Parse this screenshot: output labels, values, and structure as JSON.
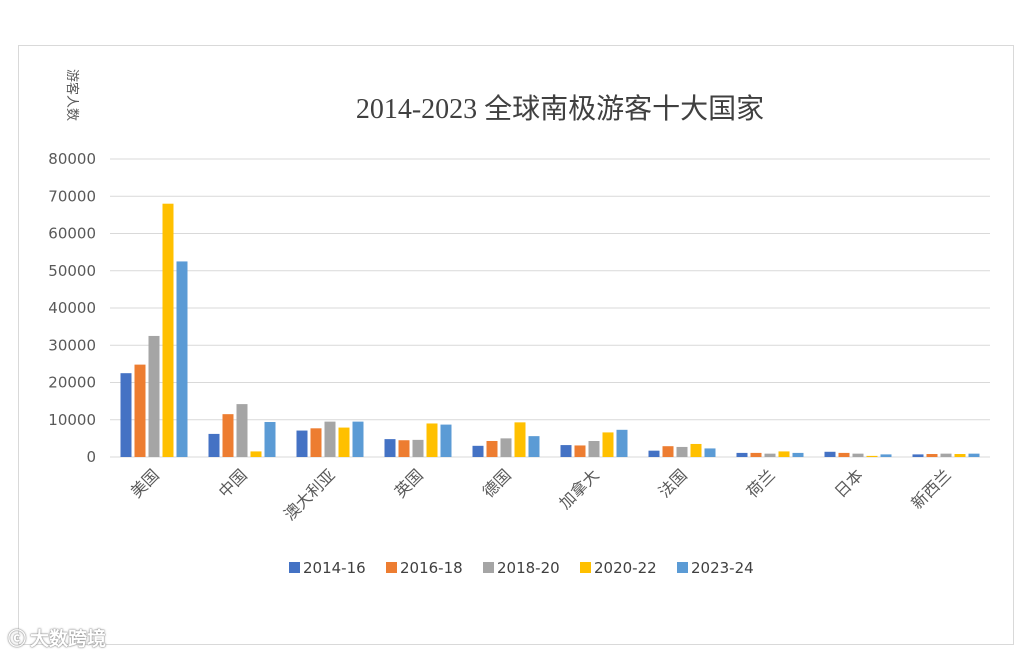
{
  "watermark": "大数跨境",
  "chart_data": {
    "type": "bar",
    "title": "2014-2023 全球南极游客十大国家",
    "ylabel": "游客人数",
    "xlabel": "",
    "ylim": [
      0,
      80000
    ],
    "yticks": [
      0,
      10000,
      20000,
      30000,
      40000,
      50000,
      60000,
      70000,
      80000
    ],
    "grid": true,
    "legend_position": "bottom",
    "categories": [
      "美国",
      "中国",
      "澳大利亚",
      "英国",
      "德国",
      "加拿大",
      "法国",
      "荷兰",
      "日本",
      "新西兰"
    ],
    "series": [
      {
        "name": "2014-16",
        "color": "#4472C4",
        "values": [
          22500,
          6200,
          7100,
          4800,
          3000,
          3200,
          1700,
          1100,
          1400,
          700
        ]
      },
      {
        "name": "2016-18",
        "color": "#ED7D31",
        "values": [
          24800,
          11500,
          7700,
          4500,
          4300,
          3100,
          2900,
          1100,
          1100,
          800
        ]
      },
      {
        "name": "2018-20",
        "color": "#A5A5A5",
        "values": [
          32500,
          14200,
          9500,
          4600,
          5000,
          4300,
          2700,
          900,
          900,
          900
        ]
      },
      {
        "name": "2020-22",
        "color": "#FFC000",
        "values": [
          68000,
          1500,
          7900,
          9000,
          9300,
          6600,
          3500,
          1500,
          300,
          800
        ]
      },
      {
        "name": "2023-24",
        "color": "#5B9BD5",
        "values": [
          52500,
          9400,
          9500,
          8700,
          5600,
          7300,
          2300,
          1100,
          700,
          900
        ]
      }
    ]
  }
}
